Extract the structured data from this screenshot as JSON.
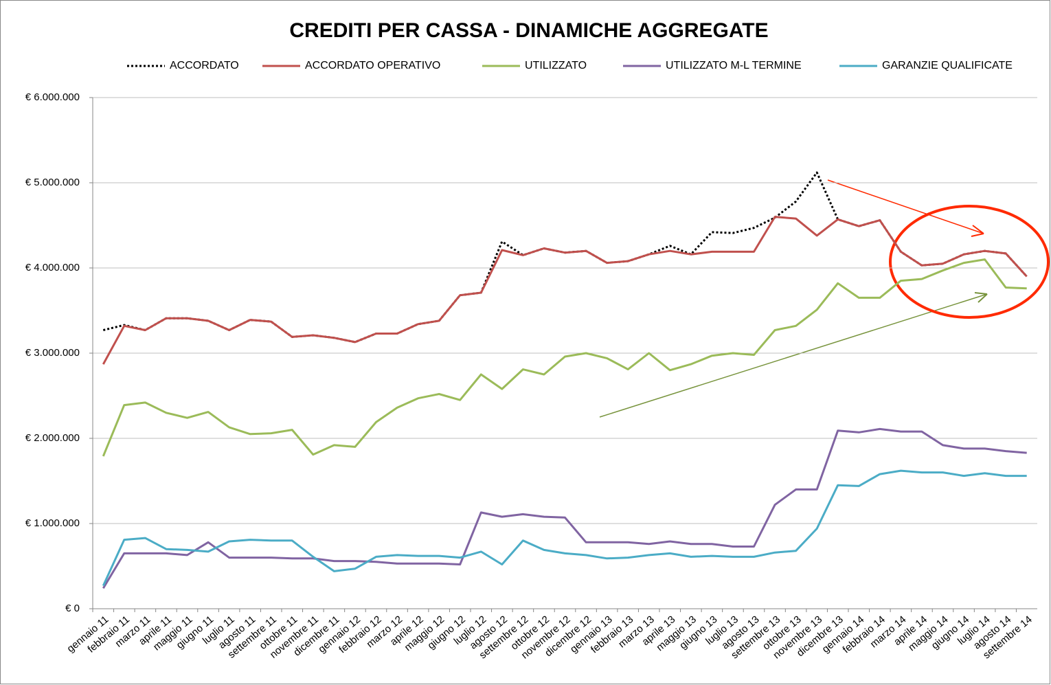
{
  "chart_data": {
    "type": "line",
    "title": "CREDITI PER CASSA - DINAMICHE AGGREGATE",
    "categories": [
      "gennaio 11",
      "febbraio 11",
      "marzo 11",
      "aprile 11",
      "maggio 11",
      "giugno 11",
      "luglio 11",
      "agosto 11",
      "settembre 11",
      "ottobre 11",
      "novembre 11",
      "dicembre 11",
      "gennaio 12",
      "febbraio 12",
      "marzo 12",
      "aprile 12",
      "maggio 12",
      "giugno 12",
      "luglio 12",
      "agosto 12",
      "settembre 12",
      "ottobre 12",
      "novembre 12",
      "dicembre 12",
      "gennaio 13",
      "febbraio 13",
      "marzo 13",
      "aprile 13",
      "maggio 13",
      "giugno 13",
      "luglio 13",
      "agosto 13",
      "settembre 13",
      "ottobre 13",
      "novembre 13",
      "dicembre 13",
      "gennaio 14",
      "febbraio 14",
      "marzo 14",
      "aprile 14",
      "maggio 14",
      "giugno 14",
      "luglio 14",
      "agosto 14",
      "settembre 14"
    ],
    "series": [
      {
        "name": "ACCORDATO",
        "color": "#000000",
        "style": "dotted",
        "values": [
          3270000,
          3330000,
          3270000,
          3410000,
          3410000,
          3380000,
          3270000,
          3390000,
          3370000,
          3190000,
          3210000,
          3180000,
          3130000,
          3230000,
          3230000,
          3340000,
          3380000,
          3680000,
          3710000,
          4310000,
          4150000,
          4230000,
          4180000,
          4200000,
          4060000,
          4080000,
          4160000,
          4260000,
          4160000,
          4420000,
          4410000,
          4470000,
          4590000,
          4780000,
          5120000,
          4570000,
          4490000,
          4560000,
          4190000,
          4030000,
          4050000,
          4160000,
          4200000,
          4170000,
          3900000
        ]
      },
      {
        "name": "ACCORDATO OPERATIVO",
        "color": "#c0504d",
        "style": "solid",
        "values": [
          2870000,
          3320000,
          3270000,
          3410000,
          3410000,
          3380000,
          3270000,
          3390000,
          3370000,
          3190000,
          3210000,
          3180000,
          3130000,
          3230000,
          3230000,
          3340000,
          3380000,
          3680000,
          3710000,
          4210000,
          4150000,
          4230000,
          4180000,
          4200000,
          4060000,
          4080000,
          4160000,
          4200000,
          4160000,
          4190000,
          4190000,
          4190000,
          4600000,
          4580000,
          4380000,
          4570000,
          4490000,
          4560000,
          4190000,
          4030000,
          4050000,
          4160000,
          4200000,
          4170000,
          3900000
        ]
      },
      {
        "name": "UTILIZZATO",
        "color": "#9bbb59",
        "style": "solid",
        "values": [
          1790000,
          2390000,
          2420000,
          2300000,
          2240000,
          2310000,
          2130000,
          2050000,
          2060000,
          2100000,
          1810000,
          1920000,
          1900000,
          2190000,
          2360000,
          2470000,
          2520000,
          2450000,
          2750000,
          2580000,
          2810000,
          2750000,
          2960000,
          3000000,
          2940000,
          2810000,
          3000000,
          2800000,
          2870000,
          2970000,
          3000000,
          2980000,
          3270000,
          3320000,
          3510000,
          3820000,
          3650000,
          3650000,
          3850000,
          3870000,
          3970000,
          4060000,
          4100000,
          3770000,
          3760000
        ]
      },
      {
        "name": "UTILIZZATO M-L TERMINE",
        "color": "#8064a2",
        "style": "solid",
        "values": [
          240000,
          650000,
          650000,
          650000,
          630000,
          780000,
          600000,
          600000,
          600000,
          590000,
          590000,
          560000,
          560000,
          550000,
          530000,
          530000,
          530000,
          520000,
          1130000,
          1080000,
          1110000,
          1080000,
          1070000,
          780000,
          780000,
          780000,
          760000,
          790000,
          760000,
          760000,
          730000,
          730000,
          1220000,
          1400000,
          1400000,
          2090000,
          2070000,
          2110000,
          2080000,
          2080000,
          1920000,
          1880000,
          1880000,
          1850000,
          1830000
        ]
      },
      {
        "name": "GARANZIE QUALIFICATE",
        "color": "#4bacc6",
        "style": "solid",
        "values": [
          270000,
          810000,
          830000,
          700000,
          690000,
          670000,
          790000,
          810000,
          800000,
          800000,
          610000,
          440000,
          470000,
          610000,
          630000,
          620000,
          620000,
          600000,
          670000,
          520000,
          800000,
          690000,
          650000,
          630000,
          590000,
          600000,
          630000,
          650000,
          610000,
          620000,
          610000,
          610000,
          660000,
          680000,
          940000,
          1450000,
          1440000,
          1580000,
          1620000,
          1600000,
          1600000,
          1560000,
          1590000,
          1560000,
          1560000
        ]
      }
    ],
    "ylim": [
      0,
      6000000
    ],
    "yticks": [
      {
        "value": 0,
        "label": "€ 0"
      },
      {
        "value": 1000000,
        "label": "€ 1.000.000"
      },
      {
        "value": 2000000,
        "label": "€ 2.000.000"
      },
      {
        "value": 3000000,
        "label": "€ 3.000.000"
      },
      {
        "value": 4000000,
        "label": "€ 4.000.000"
      },
      {
        "value": 5000000,
        "label": "€ 5.000.000"
      },
      {
        "value": 6000000,
        "label": "€ 6.000.000"
      }
    ],
    "grid": true,
    "legend": "top"
  }
}
